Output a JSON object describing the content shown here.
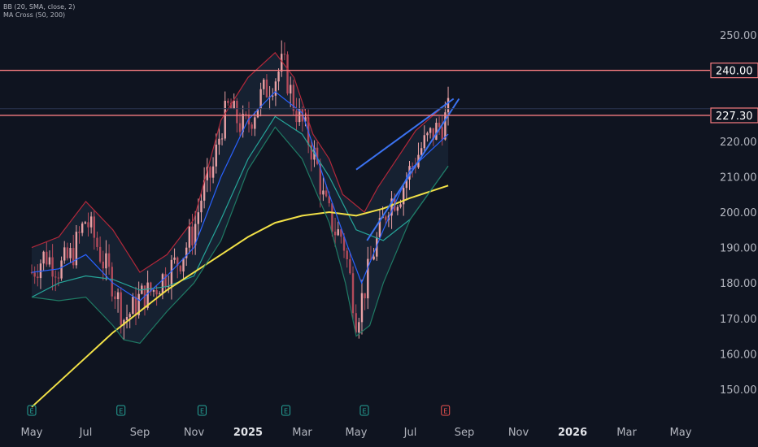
{
  "indicators": {
    "bb_label": "BB (20, SMA, close, 2)",
    "ma_label": "MA Cross (50, 200)"
  },
  "chart_data": {
    "type": "candlestick",
    "y_axis": {
      "range": [
        145,
        256
      ],
      "ticks": [
        "150.00",
        "160.00",
        "170.00",
        "180.00",
        "190.00",
        "200.00",
        "210.00",
        "220.00",
        "230.00",
        "240.00",
        "250.00"
      ]
    },
    "x_axis": {
      "ticks": [
        {
          "label": "May",
          "month": 0
        },
        {
          "label": "Jul",
          "month": 2
        },
        {
          "label": "Sep",
          "month": 4
        },
        {
          "label": "Nov",
          "month": 6
        },
        {
          "label": "2025",
          "month": 8
        },
        {
          "label": "Mar",
          "month": 10
        },
        {
          "label": "May",
          "month": 12
        },
        {
          "label": "Jul",
          "month": 14
        },
        {
          "label": "Sep",
          "month": 16
        },
        {
          "label": "Nov",
          "month": 18
        },
        {
          "label": "2026",
          "month": 20
        },
        {
          "label": "Mar",
          "month": 22
        },
        {
          "label": "May",
          "month": 24
        }
      ]
    },
    "horizontal_lines": [
      {
        "value": 240.0,
        "label": "240.00",
        "color": "#f77c80"
      },
      {
        "value": 227.3,
        "label": "227.30",
        "color": "#f77c80"
      }
    ],
    "reference_line": {
      "value": 229.2,
      "color": "#2a3550"
    },
    "earnings_markers": [
      {
        "month": 0.0,
        "label": "E",
        "color": "#26a69a"
      },
      {
        "month": 3.3,
        "label": "E",
        "color": "#26a69a"
      },
      {
        "month": 6.3,
        "label": "E",
        "color": "#26a69a"
      },
      {
        "month": 9.4,
        "label": "E",
        "color": "#26a69a"
      },
      {
        "month": 12.3,
        "label": "E",
        "color": "#26a69a"
      },
      {
        "month": 15.3,
        "label": "E",
        "color": "#ef5350"
      }
    ],
    "price_path": [
      [
        0.0,
        183
      ],
      [
        0.5,
        188
      ],
      [
        1.0,
        184
      ],
      [
        1.5,
        188
      ],
      [
        2.0,
        198
      ],
      [
        2.3,
        193
      ],
      [
        2.7,
        185
      ],
      [
        3.0,
        180
      ],
      [
        3.4,
        170
      ],
      [
        3.7,
        172
      ],
      [
        4.0,
        176
      ],
      [
        4.5,
        178
      ],
      [
        5.0,
        183
      ],
      [
        5.5,
        187
      ],
      [
        6.0,
        195
      ],
      [
        6.3,
        205
      ],
      [
        6.7,
        212
      ],
      [
        7.0,
        224
      ],
      [
        7.3,
        230
      ],
      [
        7.5,
        227
      ],
      [
        7.8,
        224
      ],
      [
        8.0,
        225
      ],
      [
        8.5,
        233
      ],
      [
        9.0,
        238
      ],
      [
        9.3,
        242
      ],
      [
        9.7,
        230
      ],
      [
        10.0,
        225
      ],
      [
        10.5,
        215
      ],
      [
        10.8,
        203
      ],
      [
        11.2,
        195
      ],
      [
        11.5,
        193
      ],
      [
        11.8,
        180
      ],
      [
        12.0,
        170
      ],
      [
        12.3,
        178
      ],
      [
        12.6,
        188
      ],
      [
        12.9,
        195
      ],
      [
        13.2,
        203
      ],
      [
        13.6,
        205
      ],
      [
        14.0,
        212
      ],
      [
        14.4,
        218
      ],
      [
        14.8,
        222
      ],
      [
        15.2,
        225
      ],
      [
        15.4,
        228
      ]
    ],
    "series": [
      {
        "name": "MA Cross (50)",
        "color": "#26a69a",
        "points": [
          [
            0.0,
            176
          ],
          [
            1.0,
            180
          ],
          [
            2.0,
            182
          ],
          [
            3.0,
            181
          ],
          [
            4.0,
            178
          ],
          [
            5.0,
            179
          ],
          [
            6.0,
            182
          ],
          [
            7.0,
            198
          ],
          [
            8.0,
            215
          ],
          [
            9.0,
            227
          ],
          [
            10.0,
            222
          ],
          [
            11.0,
            210
          ],
          [
            12.0,
            195
          ],
          [
            13.0,
            192
          ],
          [
            14.0,
            198
          ],
          [
            15.4,
            213
          ]
        ]
      },
      {
        "name": "MA Cross (200)",
        "color": "#f2e147",
        "points": [
          [
            0.0,
            145
          ],
          [
            1.0,
            152
          ],
          [
            2.0,
            159
          ],
          [
            3.0,
            166
          ],
          [
            4.0,
            172
          ],
          [
            5.0,
            178
          ],
          [
            6.0,
            183
          ],
          [
            7.0,
            188
          ],
          [
            8.0,
            193
          ],
          [
            9.0,
            197
          ],
          [
            10.0,
            199
          ],
          [
            11.0,
            200
          ],
          [
            12.0,
            199
          ],
          [
            13.0,
            201
          ],
          [
            14.0,
            204
          ],
          [
            15.4,
            207.5
          ]
        ]
      },
      {
        "name": "BB basis",
        "color": "#2962ff",
        "points": [
          [
            0.0,
            183
          ],
          [
            1.0,
            184
          ],
          [
            2.0,
            188
          ],
          [
            3.0,
            180
          ],
          [
            4.0,
            175
          ],
          [
            5.0,
            182
          ],
          [
            6.0,
            190
          ],
          [
            7.0,
            210
          ],
          [
            8.0,
            226
          ],
          [
            9.0,
            234
          ],
          [
            10.0,
            228
          ],
          [
            11.0,
            205
          ],
          [
            11.7,
            190
          ],
          [
            12.2,
            180
          ],
          [
            13.0,
            195
          ],
          [
            14.0,
            212
          ],
          [
            15.4,
            222
          ]
        ]
      },
      {
        "name": "BB upper",
        "color": "#b2283a",
        "points": [
          [
            0.0,
            190
          ],
          [
            1.0,
            193
          ],
          [
            2.0,
            203
          ],
          [
            3.0,
            195
          ],
          [
            4.0,
            183
          ],
          [
            5.0,
            188
          ],
          [
            6.0,
            198
          ],
          [
            7.0,
            226
          ],
          [
            7.5,
            232
          ],
          [
            8.0,
            238
          ],
          [
            9.0,
            245
          ],
          [
            9.7,
            238
          ],
          [
            10.4,
            222
          ],
          [
            11.0,
            215
          ],
          [
            11.5,
            205
          ],
          [
            12.3,
            200
          ],
          [
            12.8,
            207
          ],
          [
            13.5,
            215
          ],
          [
            14.2,
            223
          ],
          [
            15.4,
            231
          ]
        ]
      },
      {
        "name": "BB lower",
        "color": "#1f7a64",
        "points": [
          [
            0.0,
            176
          ],
          [
            1.0,
            175
          ],
          [
            2.0,
            176
          ],
          [
            3.0,
            168
          ],
          [
            3.4,
            164
          ],
          [
            4.0,
            163
          ],
          [
            5.0,
            172
          ],
          [
            6.0,
            180
          ],
          [
            7.0,
            192
          ],
          [
            8.0,
            212
          ],
          [
            9.0,
            224
          ],
          [
            10.0,
            215
          ],
          [
            11.0,
            197
          ],
          [
            11.6,
            180
          ],
          [
            12.0,
            165
          ],
          [
            12.5,
            168
          ],
          [
            13.0,
            180
          ],
          [
            14.0,
            198
          ],
          [
            15.4,
            213
          ]
        ]
      }
    ],
    "trendlines": [
      {
        "color": "#3b72f0",
        "points": [
          [
            12.0,
            212
          ],
          [
            15.6,
            232
          ]
        ]
      },
      {
        "color": "#3b72f0",
        "points": [
          [
            12.4,
            192
          ],
          [
            15.8,
            232
          ]
        ]
      }
    ]
  }
}
